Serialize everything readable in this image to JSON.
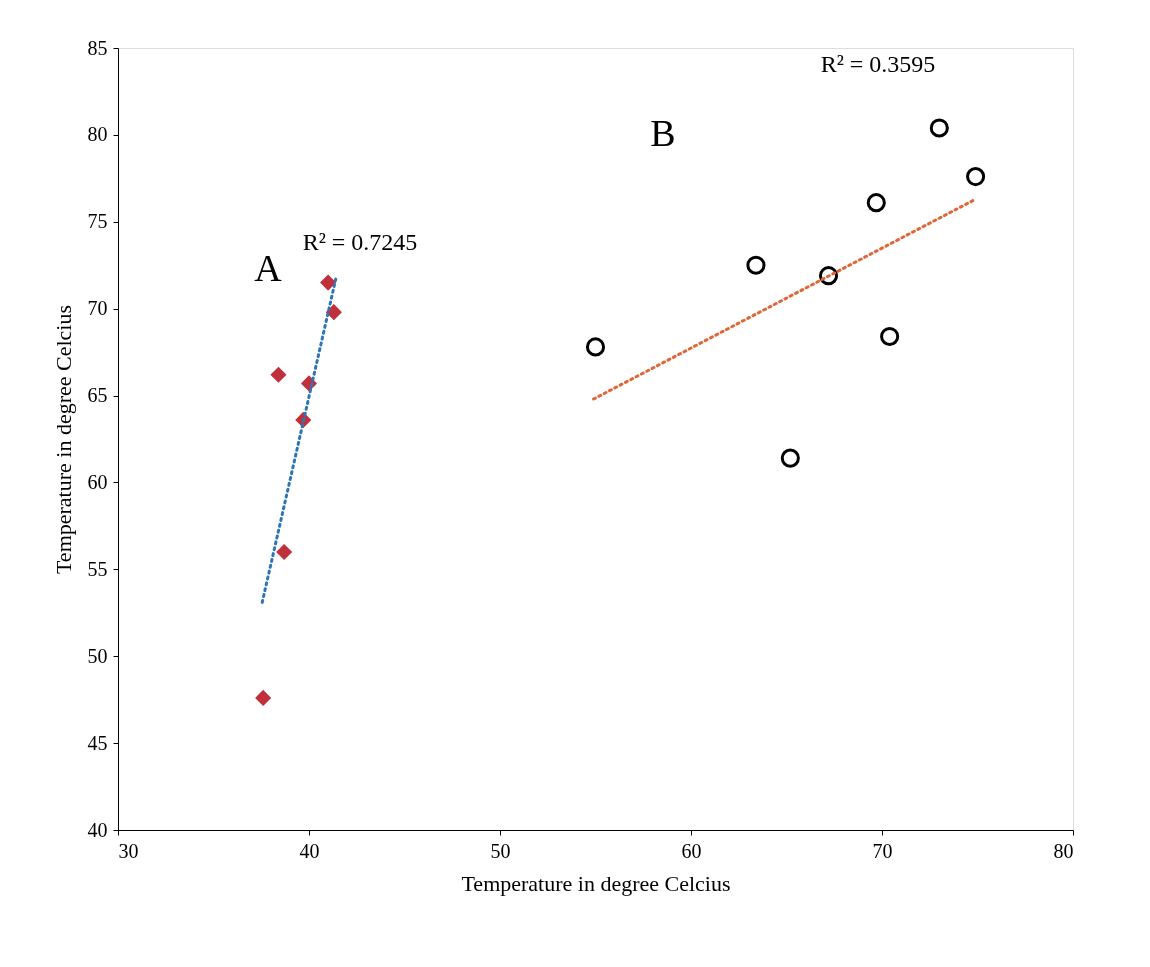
{
  "chart_data": {
    "type": "scatter",
    "xlabel": "Temperature in degree Celcius",
    "ylabel": "Temperature in degree Celcius",
    "xlim": [
      30,
      80
    ],
    "xticks": [
      30,
      40,
      50,
      60,
      70,
      80
    ],
    "ylim": [
      40,
      85
    ],
    "yticks": [
      40,
      45,
      50,
      55,
      60,
      65,
      70,
      75,
      80,
      85
    ],
    "grid": false,
    "series": [
      {
        "marker": "diamond",
        "color": "#c0303a",
        "x": [
          41.0,
          41.3,
          38.4,
          40.0,
          39.7,
          38.7,
          37.6
        ],
        "values": [
          71.5,
          69.8,
          66.2,
          65.7,
          63.6,
          56.0,
          47.6
        ]
      },
      {
        "type": "line",
        "marker": "none",
        "line_style": "dotted",
        "color": "#2e75b6",
        "x": [
          37.55,
          41.4
        ],
        "values": [
          53.1,
          71.7
        ]
      },
      {
        "marker": "circle",
        "color": "#000000",
        "x": [
          73.0,
          74.9,
          69.7,
          63.4,
          67.2,
          55.0,
          70.4,
          65.2
        ],
        "values": [
          80.4,
          77.6,
          76.1,
          72.5,
          71.9,
          67.8,
          68.4,
          61.4
        ]
      },
      {
        "type": "line",
        "marker": "none",
        "line_style": "dotted",
        "color": "#e0663a",
        "x": [
          54.9,
          74.9
        ],
        "values": [
          64.8,
          76.3
        ]
      }
    ],
    "annotations": [
      "A",
      "R² = 0.7245",
      "B",
      "R² = 0.3595"
    ]
  }
}
